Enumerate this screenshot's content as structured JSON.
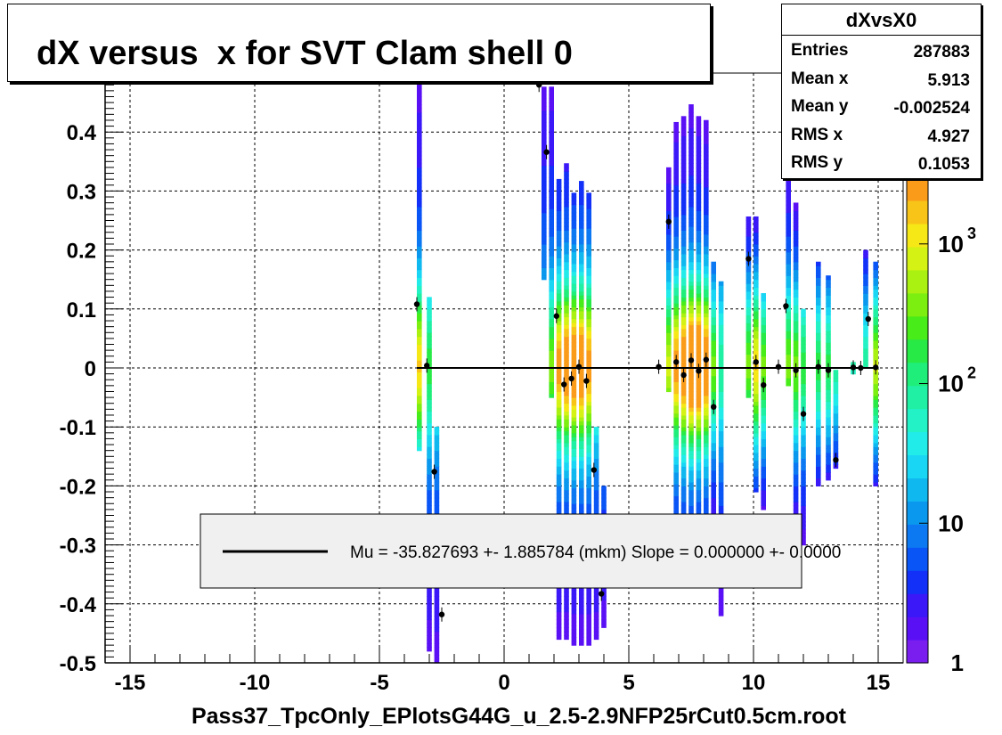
{
  "title": "dX versus  x for SVT Clam shell 0",
  "xlabel": "Pass37_TpcOnly_EPlotsG44G_u_2.5-2.9NFP25rCut0.5cm.root",
  "stats": {
    "name": "dXvsX0",
    "rows": [
      {
        "label": "Entries",
        "value": "287883"
      },
      {
        "label": "Mean x",
        "value": "5.913"
      },
      {
        "label": "Mean y",
        "value": "-0.002524"
      },
      {
        "label": "RMS x",
        "value": "4.927"
      },
      {
        "label": "RMS y",
        "value": "0.1053"
      }
    ]
  },
  "legend": {
    "text": "Mu = -35.827693 +- 1.885784 (mkm) Slope = 0.000000 +- 0.0000"
  },
  "colorbar": {
    "tick_labels": [
      "1",
      "10",
      "10",
      "10"
    ],
    "exponents": [
      "",
      "",
      "2",
      "3"
    ]
  },
  "colors": {
    "axis": "#000000",
    "fit_line": "#000000",
    "marker": "#000000",
    "grid": "#000000"
  },
  "chart_data": {
    "type": "heatmap",
    "title": "dX versus  x for SVT Clam shell 0",
    "xlabel": "Pass37_TpcOnly_EPlotsG44G_u_2.5-2.9NFP25rCut0.5cm.root",
    "ylabel": "",
    "xlim": [
      -16,
      16
    ],
    "ylim": [
      -0.5,
      0.5
    ],
    "x_ticks": [
      "-15",
      "-10",
      "-5",
      "0",
      "5",
      "10",
      "15"
    ],
    "x_tick_values": [
      -15,
      -10,
      -5,
      0,
      5,
      10,
      15
    ],
    "y_ticks": [
      "-0.5",
      "-0.4",
      "-0.3",
      "-0.2",
      "-0.1",
      "0",
      "0.1",
      "0.2",
      "0.3",
      "0.4"
    ],
    "y_tick_values": [
      -0.5,
      -0.4,
      -0.3,
      -0.2,
      -0.1,
      0,
      0.1,
      0.2,
      0.3,
      0.4
    ],
    "z_scale": "log",
    "z_range": [
      1,
      3000
    ],
    "grid": true,
    "fit_line": {
      "x": [
        -3.5,
        15.0
      ],
      "y": [
        0.0,
        0.0
      ]
    },
    "columns": [
      {
        "x": -3.4,
        "ylo": -0.14,
        "yhi": 0.48,
        "core": 0.7
      },
      {
        "x": -3.0,
        "ylo": -0.48,
        "yhi": 0.12,
        "core": 0.4
      },
      {
        "x": -2.7,
        "ylo": -0.5,
        "yhi": -0.1,
        "core": 0.3
      },
      {
        "x": 1.6,
        "ylo": 0.15,
        "yhi": 0.48,
        "core": 0.3
      },
      {
        "x": 1.9,
        "ylo": -0.05,
        "yhi": 0.48,
        "core": 0.5
      },
      {
        "x": 2.2,
        "ylo": -0.46,
        "yhi": 0.32,
        "core": 0.8
      },
      {
        "x": 2.5,
        "ylo": -0.46,
        "yhi": 0.35,
        "core": 0.9
      },
      {
        "x": 2.8,
        "ylo": -0.47,
        "yhi": 0.3,
        "core": 0.9
      },
      {
        "x": 3.1,
        "ylo": -0.47,
        "yhi": 0.32,
        "core": 0.9
      },
      {
        "x": 3.4,
        "ylo": -0.47,
        "yhi": 0.3,
        "core": 0.8
      },
      {
        "x": 3.7,
        "ylo": -0.46,
        "yhi": -0.1,
        "core": 0.4
      },
      {
        "x": 4.0,
        "ylo": -0.44,
        "yhi": -0.2,
        "core": 0.3
      },
      {
        "x": 6.6,
        "ylo": -0.04,
        "yhi": 0.34,
        "core": 0.6
      },
      {
        "x": 6.9,
        "ylo": -0.25,
        "yhi": 0.42,
        "core": 0.8
      },
      {
        "x": 7.2,
        "ylo": -0.26,
        "yhi": 0.43,
        "core": 0.9
      },
      {
        "x": 7.5,
        "ylo": -0.26,
        "yhi": 0.45,
        "core": 1.0
      },
      {
        "x": 7.8,
        "ylo": -0.26,
        "yhi": 0.43,
        "core": 1.0
      },
      {
        "x": 8.1,
        "ylo": -0.26,
        "yhi": 0.42,
        "core": 0.9
      },
      {
        "x": 8.4,
        "ylo": -0.26,
        "yhi": 0.18,
        "core": 0.5
      },
      {
        "x": 8.7,
        "ylo": -0.42,
        "yhi": 0.15,
        "core": 0.3
      },
      {
        "x": 9.8,
        "ylo": -0.05,
        "yhi": 0.26,
        "core": 0.5
      },
      {
        "x": 10.1,
        "ylo": -0.21,
        "yhi": 0.26,
        "core": 0.7
      },
      {
        "x": 10.4,
        "ylo": -0.24,
        "yhi": 0.13,
        "core": 0.5
      },
      {
        "x": 11.4,
        "ylo": -0.03,
        "yhi": 0.34,
        "core": 0.5
      },
      {
        "x": 11.7,
        "ylo": -0.26,
        "yhi": 0.28,
        "core": 0.5
      },
      {
        "x": 12.0,
        "ylo": -0.3,
        "yhi": 0.1,
        "core": 0.4
      },
      {
        "x": 12.6,
        "ylo": -0.2,
        "yhi": 0.18,
        "core": 0.4
      },
      {
        "x": 13.0,
        "ylo": -0.19,
        "yhi": 0.16,
        "core": 0.4
      },
      {
        "x": 13.3,
        "ylo": -0.17,
        "yhi": 0.0,
        "core": 0.3
      },
      {
        "x": 14.0,
        "ylo": -0.01,
        "yhi": 0.01,
        "core": 0.3
      },
      {
        "x": 14.5,
        "ylo": 0.0,
        "yhi": 0.2,
        "core": 0.3
      },
      {
        "x": 14.9,
        "ylo": -0.2,
        "yhi": 0.18,
        "core": 0.6
      }
    ],
    "profile_points": [
      {
        "x": -3.5,
        "y": 0.108
      },
      {
        "x": -3.1,
        "y": 0.004
      },
      {
        "x": -2.8,
        "y": -0.176
      },
      {
        "x": -2.5,
        "y": -0.418
      },
      {
        "x": 1.4,
        "y": 0.48
      },
      {
        "x": 1.7,
        "y": 0.366
      },
      {
        "x": 2.1,
        "y": 0.088
      },
      {
        "x": 2.4,
        "y": -0.028
      },
      {
        "x": 2.7,
        "y": -0.018
      },
      {
        "x": 3.0,
        "y": 0.002
      },
      {
        "x": 3.3,
        "y": -0.022
      },
      {
        "x": 3.6,
        "y": -0.173
      },
      {
        "x": 3.9,
        "y": -0.383
      },
      {
        "x": 6.2,
        "y": 0.002
      },
      {
        "x": 6.6,
        "y": 0.248
      },
      {
        "x": 6.9,
        "y": 0.01
      },
      {
        "x": 7.2,
        "y": -0.012
      },
      {
        "x": 7.5,
        "y": 0.013
      },
      {
        "x": 7.8,
        "y": -0.005
      },
      {
        "x": 8.1,
        "y": 0.014
      },
      {
        "x": 8.4,
        "y": -0.066
      },
      {
        "x": 9.8,
        "y": 0.185
      },
      {
        "x": 10.1,
        "y": 0.01
      },
      {
        "x": 10.4,
        "y": -0.029
      },
      {
        "x": 11.0,
        "y": 0.002
      },
      {
        "x": 11.3,
        "y": 0.105
      },
      {
        "x": 11.7,
        "y": -0.004
      },
      {
        "x": 12.0,
        "y": -0.078
      },
      {
        "x": 12.6,
        "y": 0.002
      },
      {
        "x": 13.0,
        "y": -0.004
      },
      {
        "x": 13.3,
        "y": -0.156
      },
      {
        "x": 14.0,
        "y": 0.001
      },
      {
        "x": 14.3,
        "y": 0.0
      },
      {
        "x": 14.6,
        "y": 0.083
      },
      {
        "x": 14.9,
        "y": 0.001
      }
    ],
    "legend_entries": [
      "Mu = -35.827693 +- 1.885784 (mkm) Slope = 0.000000 +- 0.0000"
    ]
  }
}
